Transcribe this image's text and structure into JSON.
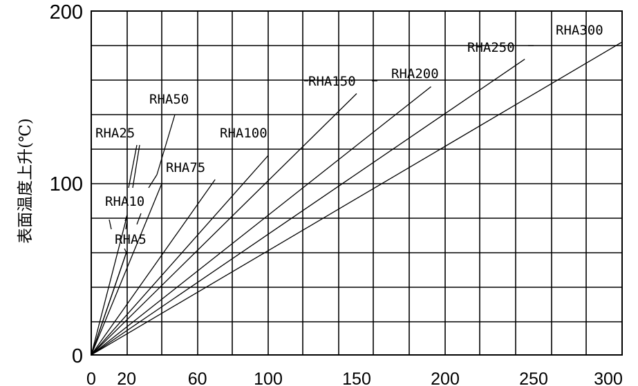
{
  "chart_data": {
    "type": "line",
    "title": "",
    "xlabel": "",
    "ylabel": "表面温度上升(℃)",
    "xlim": [
      0,
      300
    ],
    "ylim": [
      0,
      200
    ],
    "x_ticks": [
      0,
      20,
      60,
      100,
      150,
      200,
      250,
      300
    ],
    "y_ticks": [
      0,
      100,
      200
    ],
    "grid": true,
    "series": [
      {
        "name": "RHA5",
        "x": [
          0,
          20
        ],
        "y": [
          0,
          60
        ]
      },
      {
        "name": "RHA10",
        "x": [
          0,
          20
        ],
        "y": [
          0,
          80
        ]
      },
      {
        "name": "RHA25",
        "x": [
          0,
          20
        ],
        "y": [
          0,
          60
        ]
      },
      {
        "name": "RHA50",
        "x": [
          0,
          40
        ],
        "y": [
          0,
          100
        ]
      },
      {
        "name": "RHA75",
        "x": [
          0,
          70
        ],
        "y": [
          0,
          102
        ]
      },
      {
        "name": "RHA100",
        "x": [
          0,
          100
        ],
        "y": [
          0,
          116
        ]
      },
      {
        "name": "RHA150",
        "x": [
          0,
          150
        ],
        "y": [
          0,
          152
        ]
      },
      {
        "name": "RHA200",
        "x": [
          0,
          192
        ],
        "y": [
          0,
          156
        ]
      },
      {
        "name": "RHA250",
        "x": [
          0,
          245
        ],
        "y": [
          0,
          172
        ]
      },
      {
        "name": "RHA300",
        "x": [
          0,
          300
        ],
        "y": [
          0,
          182
        ]
      }
    ]
  }
}
